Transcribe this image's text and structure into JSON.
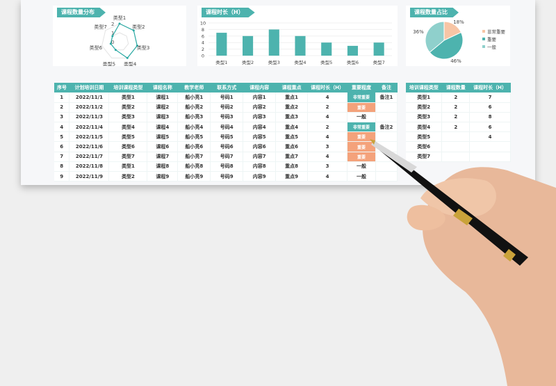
{
  "radar": {
    "title": "课程数量分布",
    "chart_data": {
      "type": "radar",
      "categories": [
        "类型1",
        "类型2",
        "类型3",
        "类型4",
        "类型5",
        "类型6",
        "类型7"
      ],
      "values": [
        2,
        2,
        2,
        2,
        1,
        1,
        1
      ],
      "ticks": [
        "0",
        "1",
        "2"
      ],
      "rlim": [
        0,
        2
      ]
    }
  },
  "bar": {
    "title": "课程时长（H）",
    "chart_data": {
      "type": "bar",
      "categories": [
        "类型1",
        "类型2",
        "类型3",
        "类型4",
        "类型5",
        "类型6",
        "类型7"
      ],
      "values": [
        7,
        6,
        8,
        6,
        4,
        3,
        4
      ],
      "ylim": [
        0,
        10
      ],
      "yticks": [
        "0",
        "2",
        "4",
        "6",
        "8",
        "10"
      ],
      "color": "#4db3ae"
    }
  },
  "pie": {
    "title": "课程数量占比",
    "chart_data": {
      "type": "pie",
      "labels": [
        "非常重要",
        "重要",
        "一般"
      ],
      "values": [
        18,
        46,
        36
      ],
      "data_labels": [
        "18%",
        "46%",
        "36%"
      ],
      "colors": [
        "#f7c5a5",
        "#4db3ae",
        "#8fd0cc"
      ],
      "legend": "right"
    }
  },
  "main_table": {
    "headers": [
      "序号",
      "计划培训日期",
      "培训课程类型",
      "课程名称",
      "教学老师",
      "联系方式",
      "课程内容",
      "课程重点",
      "课程时长（H）",
      "重要程度",
      "备注"
    ],
    "rows": [
      [
        "1",
        "2022/11/1",
        "类型1",
        "课程1",
        "船小亮1",
        "号码1",
        "内容1",
        "重点1",
        "4",
        "非常重要",
        "备注1"
      ],
      [
        "2",
        "2022/11/2",
        "类型2",
        "课程2",
        "船小亮2",
        "号码2",
        "内容2",
        "重点2",
        "2",
        "重要",
        ""
      ],
      [
        "3",
        "2022/11/3",
        "类型3",
        "课程3",
        "船小亮3",
        "号码3",
        "内容3",
        "重点3",
        "4",
        "一般",
        ""
      ],
      [
        "4",
        "2022/11/4",
        "类型4",
        "课程4",
        "船小亮4",
        "号码4",
        "内容4",
        "重点4",
        "2",
        "非常重要",
        "备注2"
      ],
      [
        "5",
        "2022/11/5",
        "类型5",
        "课程5",
        "船小亮5",
        "号码5",
        "内容5",
        "重点5",
        "4",
        "重要",
        ""
      ],
      [
        "6",
        "2022/11/6",
        "类型6",
        "课程6",
        "船小亮6",
        "号码6",
        "内容6",
        "重点6",
        "3",
        "重要",
        ""
      ],
      [
        "7",
        "2022/11/7",
        "类型7",
        "课程7",
        "船小亮7",
        "号码7",
        "内容7",
        "重点7",
        "4",
        "重要",
        ""
      ],
      [
        "8",
        "2022/11/8",
        "类型1",
        "课程8",
        "船小亮8",
        "号码8",
        "内容8",
        "重点8",
        "3",
        "一般",
        ""
      ],
      [
        "9",
        "2022/11/9",
        "类型2",
        "课程9",
        "船小亮9",
        "号码9",
        "内容9",
        "重点9",
        "4",
        "一般",
        ""
      ]
    ]
  },
  "summary_table": {
    "headers": [
      "培训课程类型",
      "课程数量",
      "课程时长（H）"
    ],
    "rows": [
      [
        "类型1",
        "2",
        "7"
      ],
      [
        "类型2",
        "2",
        "6"
      ],
      [
        "类型3",
        "2",
        "8"
      ],
      [
        "类型4",
        "2",
        "6"
      ],
      [
        "类型5",
        "",
        "4"
      ],
      [
        "类型6",
        "",
        ""
      ],
      [
        "类型7",
        "",
        ""
      ]
    ]
  }
}
